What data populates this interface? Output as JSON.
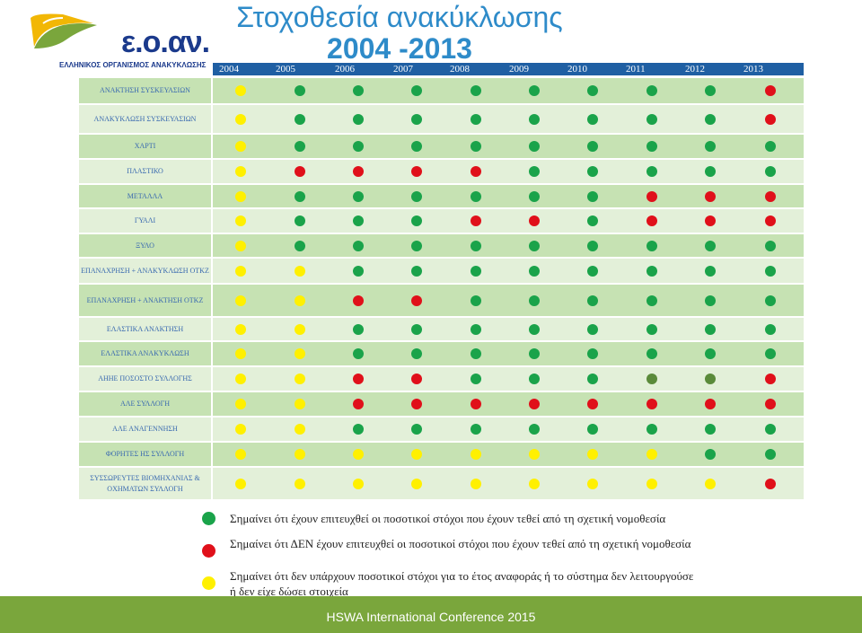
{
  "logo": {
    "name": "ε.ο.αν.",
    "subtitle": "ΕΛΛΗΝΙΚΟΣ ΟΡΓΑΝΙΣΜΟΣ ΑΝΑΚΥΚΛΩΣΗΣ"
  },
  "title": {
    "line1": "Στοχοθεσία ανακύκλωσης",
    "line2": "2004 -2013"
  },
  "years": [
    "2004",
    "2005",
    "2006",
    "2007",
    "2008",
    "2009",
    "2010",
    "2011",
    "2012",
    "2013"
  ],
  "colors": {
    "green": "#1aa34a",
    "red": "#e0101a",
    "yellow": "#fff000",
    "olive": "#5a8a3a"
  },
  "rows": [
    {
      "label": "ΑΝΑΚΤΗΣΗ ΣΥΣΚΕΥΑΣΙΩΝ",
      "status": [
        "yellow",
        "green",
        "green",
        "green",
        "green",
        "green",
        "green",
        "green",
        "green",
        "red"
      ]
    },
    {
      "label": "ΑΝΑΚΥΚΛΩΣΗ ΣΥΣΚΕΥΑΣΙΩΝ",
      "status": [
        "yellow",
        "green",
        "green",
        "green",
        "green",
        "green",
        "green",
        "green",
        "green",
        "red"
      ]
    },
    {
      "label": "ΧΑΡΤΙ",
      "status": [
        "yellow",
        "green",
        "green",
        "green",
        "green",
        "green",
        "green",
        "green",
        "green",
        "green"
      ]
    },
    {
      "label": "ΠΛΑΣΤΙΚΟ",
      "status": [
        "yellow",
        "red",
        "red",
        "red",
        "red",
        "green",
        "green",
        "green",
        "green",
        "green"
      ]
    },
    {
      "label": "ΜΕΤΑΛΛΑ",
      "status": [
        "yellow",
        "green",
        "green",
        "green",
        "green",
        "green",
        "green",
        "red",
        "red",
        "red"
      ]
    },
    {
      "label": "ΓΥΑΛΙ",
      "status": [
        "yellow",
        "green",
        "green",
        "green",
        "red",
        "red",
        "green",
        "red",
        "red",
        "red"
      ]
    },
    {
      "label": "ΞΥΛΟ",
      "status": [
        "yellow",
        "green",
        "green",
        "green",
        "green",
        "green",
        "green",
        "green",
        "green",
        "green"
      ]
    },
    {
      "label": "ΕΠΑΝΑΧΡΗΣΗ + ΑΝΑΚΥΚΛΩΣΗ ΟΤΚΖ",
      "status": [
        "yellow",
        "yellow",
        "green",
        "green",
        "green",
        "green",
        "green",
        "green",
        "green",
        "green"
      ]
    },
    {
      "label": "ΕΠΑΝΑΧΡΗΣΗ + ΑΝΑΚΤΗΣΗ ΟΤΚΖ",
      "status": [
        "yellow",
        "yellow",
        "red",
        "red",
        "green",
        "green",
        "green",
        "green",
        "green",
        "green"
      ]
    },
    {
      "label": "ΕΛΑΣΤΙΚΑ ΑΝΑΚΤΗΣΗ",
      "status": [
        "yellow",
        "yellow",
        "green",
        "green",
        "green",
        "green",
        "green",
        "green",
        "green",
        "green"
      ]
    },
    {
      "label": "ΕΛΑΣΤΙΚΑ ΑΝΑΚΥΚΛΩΣΗ",
      "status": [
        "yellow",
        "yellow",
        "green",
        "green",
        "green",
        "green",
        "green",
        "green",
        "green",
        "green"
      ]
    },
    {
      "label": "ΑΗΗΕ ΠΟΣΟΣΤΟ ΣΥΛΛΟΓΗΣ",
      "status": [
        "yellow",
        "yellow",
        "red",
        "red",
        "green",
        "green",
        "green",
        "olive",
        "olive",
        "red"
      ]
    },
    {
      "label": "ΑΛΕ ΣΥΛΛΟΓΗ",
      "status": [
        "yellow",
        "yellow",
        "red",
        "red",
        "red",
        "red",
        "red",
        "red",
        "red",
        "red"
      ]
    },
    {
      "label": "ΑΛΕ ΑΝΑΓΕΝΝΗΣΗ",
      "status": [
        "yellow",
        "yellow",
        "green",
        "green",
        "green",
        "green",
        "green",
        "green",
        "green",
        "green"
      ]
    },
    {
      "label": "ΦΟΡΗΤΕΣ ΗΣ ΣΥΛΛΟΓΗ",
      "status": [
        "yellow",
        "yellow",
        "yellow",
        "yellow",
        "yellow",
        "yellow",
        "yellow",
        "yellow",
        "green",
        "green"
      ]
    },
    {
      "label": "ΣΥΣΣΩΡΕΥΤΕΣ ΒΙΟΜΗΧΑΝΙΑΣ & ΟΧΗΜΑΤΩΝ ΣΥΛΛΟΓΗ",
      "status": [
        "yellow",
        "yellow",
        "yellow",
        "yellow",
        "yellow",
        "yellow",
        "yellow",
        "yellow",
        "yellow",
        "red"
      ]
    }
  ],
  "legend": {
    "green_text": "Σημαίνει ότι έχουν επιτευχθεί οι ποσοτικοί στόχοι που έχουν τεθεί από τη σχετική νομοθεσία",
    "red_text": "Σημαίνει ότι ΔΕΝ έχουν επιτευχθεί οι ποσοτικοί στόχοι που έχουν τεθεί από τη σχετική νομοθεσία",
    "yellow_text": "Σημαίνει ότι δεν υπάρχουν ποσοτικοί στόχοι για το έτος αναφοράς ή το σύστημα δεν λειτουργούσε ή δεν είχε δώσει στοιχεία"
  },
  "footer": {
    "text": "HSWA International Conference 2015"
  }
}
